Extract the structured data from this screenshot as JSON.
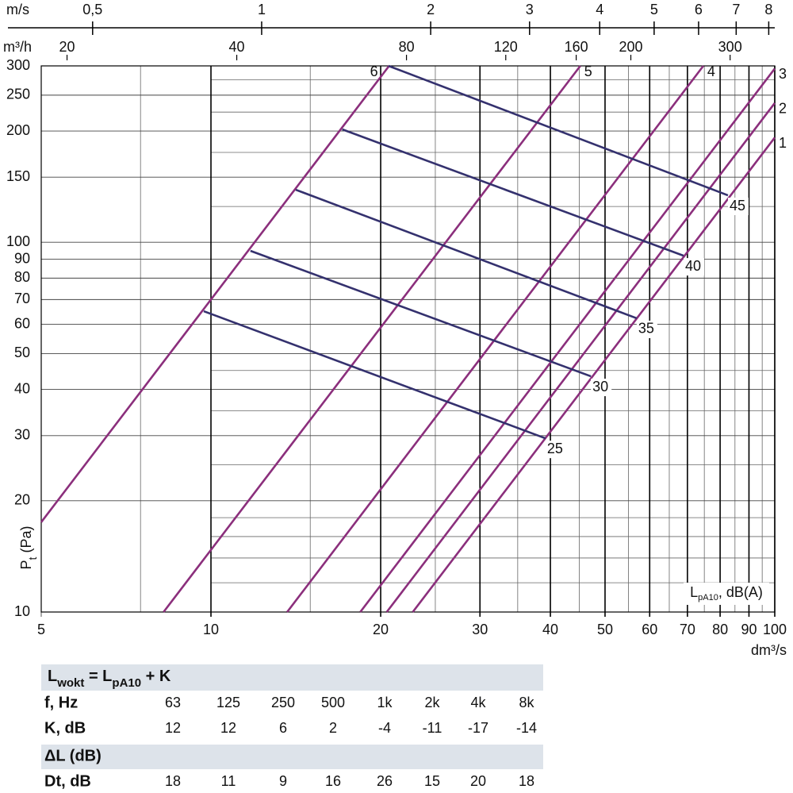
{
  "chart_data": {
    "type": "line",
    "xscale": "log",
    "yscale": "log",
    "grid": true,
    "x_label": "dm³/s",
    "y_label": [
      "P",
      "t",
      " (Pa)"
    ],
    "xlim": [
      5,
      100
    ],
    "xticks": [
      5,
      10,
      20,
      30,
      40,
      50,
      60,
      70,
      80,
      90,
      100
    ],
    "x_minor_grid": [
      7.5,
      15,
      25,
      35,
      45,
      55,
      65,
      75,
      85,
      95
    ],
    "ylim": [
      10,
      300
    ],
    "yticks": [
      10,
      20,
      30,
      40,
      50,
      60,
      70,
      80,
      90,
      100,
      150,
      200,
      250,
      300
    ],
    "y_minor_grid": [
      12,
      14,
      16,
      18,
      25,
      35,
      45,
      125,
      175,
      225,
      275
    ],
    "x2_label": "m/s",
    "x2lim": [
      0.405,
      8.2
    ],
    "x2ticks": [
      {
        "value": 0.5,
        "label": "0,5"
      },
      1,
      2,
      3,
      4,
      5,
      6,
      7,
      8
    ],
    "x3_label": "m³/h",
    "x3lim": [
      18,
      360
    ],
    "x3ticks": [
      20,
      40,
      80,
      120,
      160,
      200,
      300
    ],
    "annotation": [
      "L",
      "pA10",
      ", dB(A)"
    ],
    "series": [
      {
        "name": "1",
        "color": "#8b2f7c",
        "x": [
          22.8,
          100
        ],
        "values": [
          10,
          192
        ]
      },
      {
        "name": "2",
        "color": "#8b2f7c",
        "x": [
          20.5,
          100
        ],
        "values": [
          10,
          238
        ]
      },
      {
        "name": "3",
        "color": "#8b2f7c",
        "x": [
          18.4,
          100
        ],
        "values": [
          10,
          295
        ]
      },
      {
        "name": "4",
        "color": "#8b2f7c",
        "x": [
          13.65,
          74.7
        ],
        "values": [
          10,
          300
        ]
      },
      {
        "name": "5",
        "color": "#8b2f7c",
        "x": [
          8.24,
          45.2
        ],
        "values": [
          10,
          300
        ]
      },
      {
        "name": "6",
        "color": "#8b2f7c",
        "x": [
          5,
          20.7
        ],
        "values": [
          17.5,
          300
        ]
      },
      {
        "name": "25",
        "color": "#34316e",
        "x": [
          9.71,
          39.2
        ],
        "values": [
          65.1,
          29.5
        ]
      },
      {
        "name": "30",
        "color": "#34316e",
        "x": [
          11.75,
          47.2
        ],
        "values": [
          94.8,
          43.4
        ]
      },
      {
        "name": "35",
        "color": "#34316e",
        "x": [
          14.14,
          56.9
        ],
        "values": [
          138.7,
          62.3
        ]
      },
      {
        "name": "40",
        "color": "#34316e",
        "x": [
          17.1,
          68.9
        ],
        "values": [
          202,
          92
        ]
      },
      {
        "name": "45",
        "color": "#34316e",
        "x": [
          20.65,
          82.6
        ],
        "values": [
          300,
          134
        ]
      }
    ]
  },
  "table": {
    "formula": [
      "L",
      "wokt",
      " = L",
      "pA10",
      " + K"
    ],
    "rows": [
      {
        "label": "f, Hz",
        "cells": [
          "63",
          "125",
          "250",
          "500",
          "1k",
          "2k",
          "4k",
          "8k"
        ]
      },
      {
        "label": "K, dB",
        "cells": [
          12,
          12,
          6,
          2,
          -4,
          -11,
          -17,
          -14
        ]
      }
    ],
    "delta_title": "ΔL (dB)",
    "delta_rows": [
      {
        "label": "Dt, dB",
        "cells": [
          18,
          11,
          9,
          16,
          26,
          15,
          20,
          18
        ]
      }
    ]
  }
}
